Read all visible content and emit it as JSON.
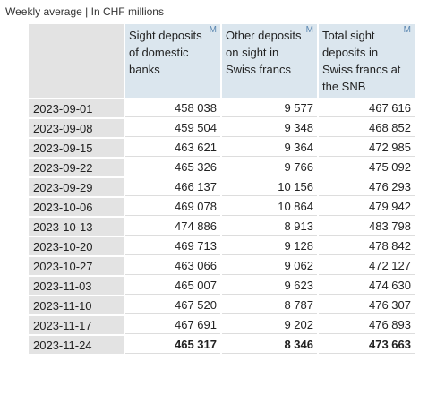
{
  "caption": "Weekly average | In CHF millions",
  "columns": [
    {
      "label": "Sight deposits of domestic banks",
      "flag": "M"
    },
    {
      "label": "Other deposits on sight in Swiss francs",
      "flag": "M"
    },
    {
      "label": "Total sight deposits in Swiss francs at the SNB",
      "flag": "M"
    }
  ],
  "rows": [
    {
      "date": "2023-09-01",
      "values": [
        "458 038",
        "9 577",
        "467 616"
      ]
    },
    {
      "date": "2023-09-08",
      "values": [
        "459 504",
        "9 348",
        "468 852"
      ]
    },
    {
      "date": "2023-09-15",
      "values": [
        "463 621",
        "9 364",
        "472 985"
      ]
    },
    {
      "date": "2023-09-22",
      "values": [
        "465 326",
        "9 766",
        "475 092"
      ]
    },
    {
      "date": "2023-09-29",
      "values": [
        "466 137",
        "10 156",
        "476 293"
      ]
    },
    {
      "date": "2023-10-06",
      "values": [
        "469 078",
        "10 864",
        "479 942"
      ]
    },
    {
      "date": "2023-10-13",
      "values": [
        "474 886",
        "8 913",
        "483 798"
      ]
    },
    {
      "date": "2023-10-20",
      "values": [
        "469 713",
        "9 128",
        "478 842"
      ]
    },
    {
      "date": "2023-10-27",
      "values": [
        "463 066",
        "9 062",
        "472 127"
      ]
    },
    {
      "date": "2023-11-03",
      "values": [
        "465 007",
        "9 623",
        "474 630"
      ]
    },
    {
      "date": "2023-11-10",
      "values": [
        "467 520",
        "8 787",
        "476 307"
      ]
    },
    {
      "date": "2023-11-17",
      "values": [
        "467 691",
        "9 202",
        "476 893"
      ]
    },
    {
      "date": "2023-11-24",
      "values": [
        "465 317",
        "8 346",
        "473 663"
      ]
    }
  ]
}
